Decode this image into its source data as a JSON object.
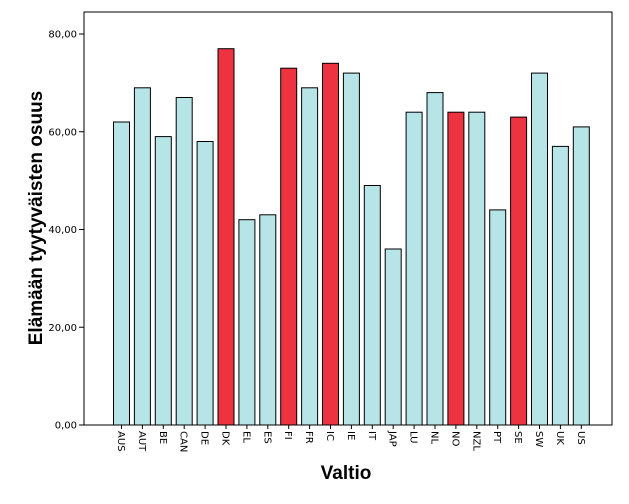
{
  "chart_data": {
    "type": "bar",
    "xlabel": "Valtio",
    "ylabel": "Elämään tyytyväisten osuus",
    "ylim": [
      0,
      80
    ],
    "yticks": [
      0,
      20,
      40,
      60,
      80
    ],
    "ytick_labels": [
      "0,00",
      "20,00",
      "40,00",
      "60,00",
      "80,00"
    ],
    "grid": false,
    "categories": [
      "AUS",
      "AUT",
      "BE",
      "CAN",
      "DE",
      "DK",
      "EL",
      "ES",
      "FI",
      "FR",
      "IC",
      "IE",
      "IT",
      "JAP",
      "LU",
      "NL",
      "NO",
      "NZL",
      "PT",
      "SE",
      "SW",
      "UK",
      "US"
    ],
    "values": [
      62,
      69,
      59,
      67,
      58,
      77,
      42,
      43,
      73,
      69,
      74,
      72,
      49,
      36,
      64,
      68,
      64,
      64,
      44,
      63,
      72,
      57,
      61
    ],
    "highlighted": [
      "DK",
      "FI",
      "IC",
      "NO",
      "SE"
    ],
    "colors": {
      "default": "#b7e4e6",
      "highlight": "#ee3340",
      "stroke": "#000000"
    }
  }
}
